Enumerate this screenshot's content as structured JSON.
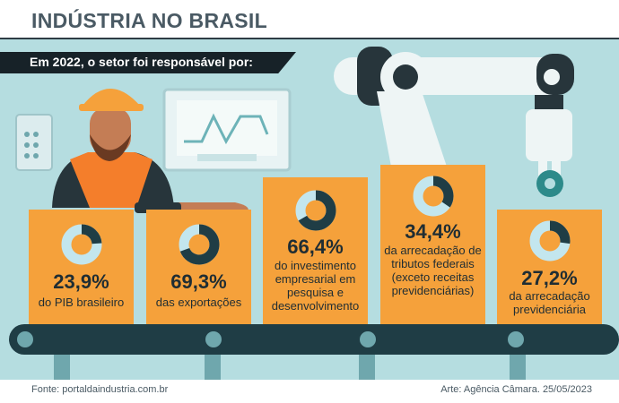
{
  "header": {
    "title": "INDÚSTRIA NO BRASIL"
  },
  "ribbon": {
    "text": "Em 2022, o setor foi responsável por:"
  },
  "chart_data": {
    "type": "pie",
    "unit": "%",
    "items": [
      {
        "value": 23.9,
        "label": "23,9%",
        "description": "do PIB brasileiro"
      },
      {
        "value": 69.3,
        "label": "69,3%",
        "description": "das exportações"
      },
      {
        "value": 66.4,
        "label": "66,4%",
        "description": "do investimento empresarial em pesquisa e desenvolvimento"
      },
      {
        "value": 34.4,
        "label": "34,4%",
        "description": "da arrecadação de tributos federais (exceto receitas previdenciárias)"
      },
      {
        "value": 27.2,
        "label": "27,2%",
        "description": "da arrecadação previdenciária"
      }
    ]
  },
  "colors": {
    "card": "#f5a13b",
    "donut_fill": "#1f3d45",
    "donut_track": "#c3e6ee",
    "background": "#b5dde0",
    "dark": "#1f2d33"
  },
  "footer": {
    "source": "Fonte: portaldaindustria.com.br",
    "credit": "Arte: Agência Câmara. 25/05/2023"
  }
}
